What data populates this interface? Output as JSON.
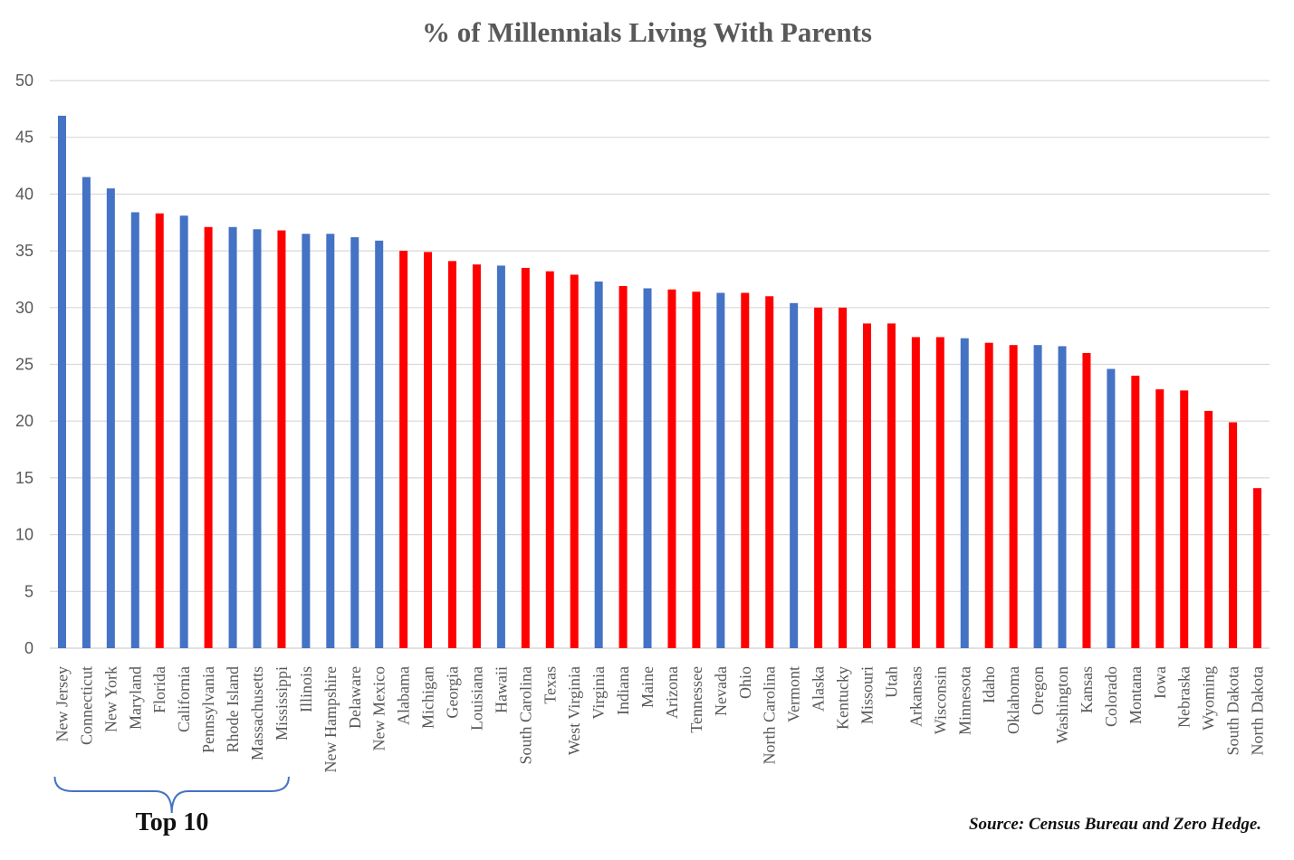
{
  "chart_data": {
    "type": "bar",
    "title": "% of  Millennials Living With Parents",
    "xlabel": "",
    "ylabel": "",
    "ylim": [
      0,
      50
    ],
    "yticks": [
      0,
      5,
      10,
      15,
      20,
      25,
      30,
      35,
      40,
      45,
      50
    ],
    "grid": true,
    "legend": "none",
    "colors": {
      "blue": "#4472C4",
      "red": "#FF0000",
      "grid": "#D9D9D9",
      "brace": "#4472C4"
    },
    "categories": [
      "New Jersey",
      "Connecticut",
      "New York",
      "Maryland",
      "Florida",
      "California",
      "Pennsylvania",
      "Rhode Island",
      "Massachusetts",
      "Mississippi",
      "Illinois",
      "New Hampshire",
      "Delaware",
      "New Mexico",
      "Alabama",
      "Michigan",
      "Georgia",
      "Louisiana",
      "Hawaii",
      "South Carolina",
      "Texas",
      "West Virginia",
      "Virginia",
      "Indiana",
      "Maine",
      "Arizona",
      "Tennessee",
      "Nevada",
      "Ohio",
      "North Carolina",
      "Vermont",
      "Alaska",
      "Kentucky",
      "Missouri",
      "Utah",
      "Arkansas",
      "Wisconsin",
      "Minnesota",
      "Idaho",
      "Oklahoma",
      "Oregon",
      "Washington",
      "Kansas",
      "Colorado",
      "Montana",
      "Iowa",
      "Nebraska",
      "Wyoming",
      "South Dakota",
      "North Dakota"
    ],
    "values": [
      46.9,
      41.5,
      40.5,
      38.4,
      38.3,
      38.1,
      37.1,
      37.1,
      36.9,
      36.8,
      36.5,
      36.5,
      36.2,
      35.9,
      35.0,
      34.9,
      34.1,
      33.8,
      33.7,
      33.5,
      33.2,
      32.9,
      32.3,
      31.9,
      31.7,
      31.6,
      31.4,
      31.3,
      31.3,
      31.0,
      30.4,
      30.0,
      30.0,
      28.6,
      28.6,
      27.4,
      27.4,
      27.3,
      26.9,
      26.7,
      26.7,
      26.6,
      26.0,
      24.6,
      24.0,
      22.8,
      22.7,
      20.9,
      19.9,
      14.1
    ],
    "bar_colors": [
      "blue",
      "blue",
      "blue",
      "blue",
      "red",
      "blue",
      "red",
      "blue",
      "blue",
      "red",
      "blue",
      "blue",
      "blue",
      "blue",
      "red",
      "red",
      "red",
      "red",
      "blue",
      "red",
      "red",
      "red",
      "blue",
      "red",
      "blue",
      "red",
      "red",
      "blue",
      "red",
      "red",
      "blue",
      "red",
      "red",
      "red",
      "red",
      "red",
      "red",
      "blue",
      "red",
      "red",
      "blue",
      "blue",
      "red",
      "blue",
      "red",
      "red",
      "red",
      "red",
      "red",
      "red"
    ],
    "annotations": {
      "bracket_label": "Top 10",
      "bracket_range": [
        0,
        9
      ],
      "source": "Source:  Census Bureau and Zero Hedge."
    }
  }
}
